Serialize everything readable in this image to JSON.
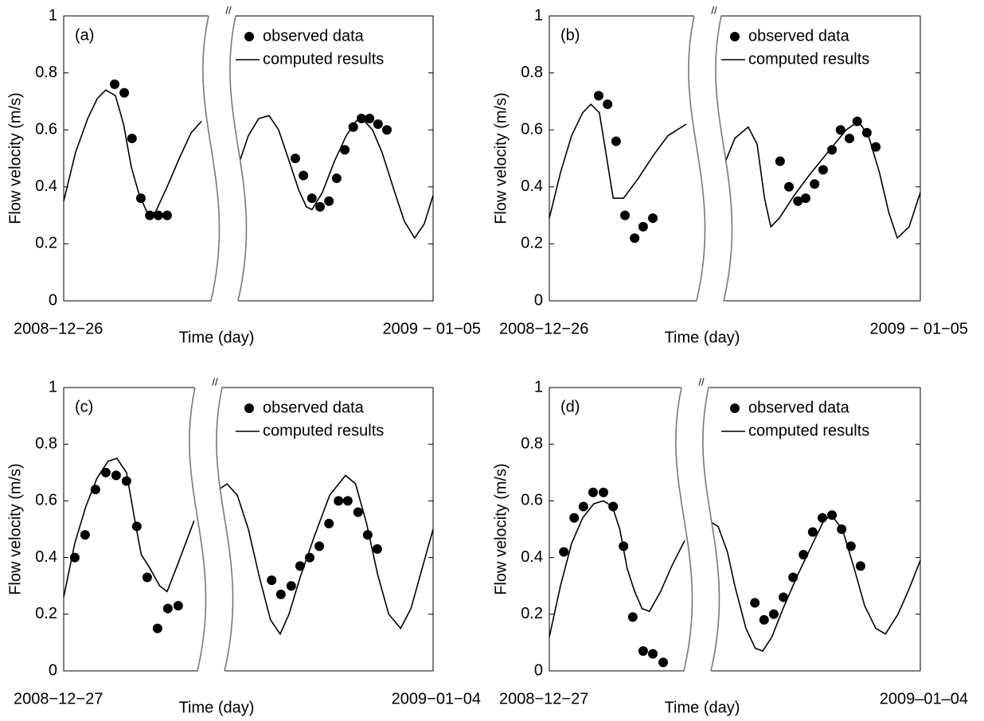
{
  "chart_data": [
    {
      "type": "line",
      "annotation": "(a)",
      "break_mark": "//",
      "xlabel": "Time (day)",
      "ylabel": "Flow velocity (m/s)",
      "xlim": [
        0,
        1
      ],
      "xticks": [
        {
          "value": 0,
          "label": "2008−12−26"
        },
        {
          "value": 1,
          "label": "2009 − 01−05"
        }
      ],
      "ylim": [
        0,
        1
      ],
      "yticks": [
        0,
        0.2,
        0.4,
        0.6,
        0.8,
        1
      ],
      "series": [
        {
          "name": "observed data",
          "color": "#000000",
          "style": "marker",
          "x": [
            0.138,
            0.164,
            0.185,
            0.209,
            0.233,
            0.256,
            0.28,
            0.627,
            0.649,
            0.672,
            0.694,
            0.718,
            0.739,
            0.761,
            0.784,
            0.806,
            0.828,
            0.851,
            0.875
          ],
          "values": [
            0.76,
            0.73,
            0.57,
            0.36,
            0.3,
            0.3,
            0.3,
            0.5,
            0.44,
            0.36,
            0.33,
            0.35,
            0.43,
            0.53,
            0.61,
            0.64,
            0.64,
            0.62,
            0.6
          ]
        },
        {
          "name": "computed results",
          "color": "#000000",
          "style": "line",
          "x": [
            0,
            0.032,
            0.065,
            0.091,
            0.114,
            0.14,
            0.162,
            0.183,
            0.205,
            0.226,
            0.248,
            0.28,
            0.313,
            0.345,
            0.373,
            null,
            0.474,
            0.5,
            0.528,
            0.556,
            0.582,
            0.608,
            0.636,
            0.657,
            0.672,
            0.7,
            0.733,
            0.765,
            0.791,
            0.808,
            0.836,
            0.862,
            0.894,
            0.922,
            0.95,
            0.976,
            1
          ],
          "values": [
            0.35,
            0.52,
            0.64,
            0.71,
            0.74,
            0.72,
            0.62,
            0.47,
            0.37,
            0.31,
            0.31,
            0.4,
            0.5,
            0.59,
            0.63,
            null,
            0.48,
            0.58,
            0.64,
            0.65,
            0.6,
            0.5,
            0.39,
            0.33,
            0.32,
            0.38,
            0.49,
            0.58,
            0.63,
            0.64,
            0.6,
            0.52,
            0.39,
            0.28,
            0.22,
            0.27,
            0.37
          ]
        }
      ]
    },
    {
      "type": "line",
      "annotation": "(b)",
      "break_mark": "//",
      "xlabel": "Time (day)",
      "ylabel": "Flow velocity (m/s)",
      "xlim": [
        0,
        1
      ],
      "xticks": [
        {
          "value": 0,
          "label": "2008−12−26"
        },
        {
          "value": 1,
          "label": "2009 − 01−05"
        }
      ],
      "ylim": [
        0,
        1
      ],
      "yticks": [
        0,
        0.2,
        0.4,
        0.6,
        0.8,
        1
      ],
      "series": [
        {
          "name": "observed data",
          "color": "#000000",
          "style": "marker",
          "x": [
            0.133,
            0.157,
            0.18,
            0.204,
            0.23,
            0.253,
            0.279,
            0.622,
            0.646,
            0.67,
            0.691,
            0.715,
            0.738,
            0.762,
            0.785,
            0.809,
            0.83,
            0.856,
            0.88
          ],
          "values": [
            0.72,
            0.69,
            0.56,
            0.3,
            0.22,
            0.26,
            0.29,
            0.49,
            0.4,
            0.35,
            0.36,
            0.41,
            0.46,
            0.53,
            0.6,
            0.57,
            0.63,
            0.59,
            0.54
          ]
        },
        {
          "name": "computed results",
          "color": "#000000",
          "style": "line",
          "x": [
            0,
            0.03,
            0.06,
            0.09,
            0.112,
            0.135,
            0.155,
            0.172,
            0.2,
            0.24,
            0.28,
            0.32,
            0.369,
            null,
            0.472,
            0.5,
            0.536,
            0.56,
            0.58,
            0.597,
            0.62,
            0.66,
            0.7,
            0.75,
            0.8,
            0.833,
            0.86,
            0.89,
            0.915,
            0.938,
            0.97,
            1
          ],
          "values": [
            0.29,
            0.45,
            0.58,
            0.66,
            0.69,
            0.66,
            0.5,
            0.36,
            0.36,
            0.43,
            0.51,
            0.58,
            0.62,
            null,
            0.48,
            0.57,
            0.61,
            0.55,
            0.36,
            0.26,
            0.29,
            0.37,
            0.44,
            0.52,
            0.6,
            0.63,
            0.58,
            0.45,
            0.31,
            0.22,
            0.26,
            0.38
          ]
        }
      ]
    },
    {
      "type": "line",
      "annotation": "(c)",
      "break_mark": "//",
      "xlabel": "Time (day)",
      "ylabel": "Flow velocity (m/s)",
      "xlim": [
        0,
        1
      ],
      "xticks": [
        {
          "value": 0,
          "label": "2008−12−27"
        },
        {
          "value": 1,
          "label": "2009−01−04"
        }
      ],
      "ylim": [
        0,
        1
      ],
      "yticks": [
        0,
        0.2,
        0.4,
        0.6,
        0.8,
        1
      ],
      "series": [
        {
          "name": "observed data",
          "color": "#000000",
          "style": "marker",
          "x": [
            0.03,
            0.058,
            0.086,
            0.114,
            0.142,
            0.17,
            0.198,
            0.226,
            0.254,
            0.282,
            0.31,
            0.563,
            0.588,
            0.616,
            0.64,
            0.666,
            0.692,
            0.718,
            0.744,
            0.769,
            0.797,
            0.823,
            0.849
          ],
          "values": [
            0.4,
            0.48,
            0.64,
            0.7,
            0.69,
            0.67,
            0.51,
            0.33,
            0.15,
            0.22,
            0.23,
            0.32,
            0.27,
            0.3,
            0.37,
            0.4,
            0.44,
            0.52,
            0.6,
            0.6,
            0.56,
            0.48,
            0.43
          ]
        },
        {
          "name": "computed results",
          "color": "#000000",
          "style": "line",
          "x": [
            0,
            0.03,
            0.06,
            0.09,
            0.12,
            0.144,
            0.17,
            0.19,
            0.21,
            0.23,
            0.26,
            0.28,
            0.31,
            0.353,
            null,
            0.409,
            0.442,
            0.47,
            0.5,
            0.53,
            0.56,
            0.586,
            0.61,
            0.64,
            0.68,
            0.72,
            0.763,
            0.79,
            0.82,
            0.85,
            0.88,
            0.912,
            0.94,
            0.97,
            1
          ],
          "values": [
            0.26,
            0.45,
            0.58,
            0.68,
            0.74,
            0.75,
            0.7,
            0.55,
            0.41,
            0.37,
            0.3,
            0.28,
            0.38,
            0.53,
            null,
            0.63,
            0.66,
            0.62,
            0.5,
            0.33,
            0.18,
            0.13,
            0.2,
            0.33,
            0.48,
            0.62,
            0.69,
            0.66,
            0.52,
            0.34,
            0.2,
            0.15,
            0.22,
            0.36,
            0.5
          ]
        }
      ]
    },
    {
      "type": "line",
      "annotation": "(d)",
      "break_mark": "//",
      "xlabel": "Time (day)",
      "ylabel": "Flow velocity (m/s)",
      "xlim": [
        0,
        1
      ],
      "xticks": [
        {
          "value": 0,
          "label": "2008−12−27"
        },
        {
          "value": 1,
          "label": "2009–01–04"
        }
      ],
      "ylim": [
        0,
        1
      ],
      "yticks": [
        0,
        0.2,
        0.4,
        0.6,
        0.8,
        1
      ],
      "series": [
        {
          "name": "observed data",
          "color": "#000000",
          "style": "marker",
          "x": [
            0.039,
            0.067,
            0.092,
            0.118,
            0.146,
            0.172,
            0.2,
            0.225,
            0.253,
            0.279,
            0.307,
            0.554,
            0.579,
            0.605,
            0.631,
            0.657,
            0.685,
            0.71,
            0.736,
            0.762,
            0.788,
            0.813,
            0.839
          ],
          "values": [
            0.42,
            0.54,
            0.58,
            0.63,
            0.63,
            0.58,
            0.44,
            0.19,
            0.07,
            0.06,
            0.03,
            0.24,
            0.18,
            0.2,
            0.26,
            0.33,
            0.41,
            0.49,
            0.54,
            0.55,
            0.5,
            0.44,
            0.37
          ]
        },
        {
          "name": "computed results",
          "color": "#000000",
          "style": "line",
          "x": [
            0,
            0.03,
            0.06,
            0.09,
            0.12,
            0.146,
            0.17,
            0.19,
            0.21,
            0.23,
            0.25,
            0.27,
            0.3,
            0.33,
            0.365,
            null,
            0.429,
            0.455,
            0.48,
            0.5,
            0.53,
            0.555,
            0.575,
            0.6,
            0.63,
            0.67,
            0.71,
            0.74,
            0.76,
            0.79,
            0.82,
            0.85,
            0.88,
            0.906,
            0.94,
            0.97,
            1
          ],
          "values": [
            0.12,
            0.3,
            0.45,
            0.54,
            0.59,
            0.6,
            0.58,
            0.5,
            0.36,
            0.28,
            0.22,
            0.21,
            0.28,
            0.37,
            0.46,
            null,
            0.53,
            0.51,
            0.42,
            0.3,
            0.15,
            0.08,
            0.07,
            0.12,
            0.22,
            0.34,
            0.45,
            0.53,
            0.55,
            0.5,
            0.37,
            0.23,
            0.15,
            0.13,
            0.2,
            0.29,
            0.39
          ]
        }
      ]
    }
  ]
}
